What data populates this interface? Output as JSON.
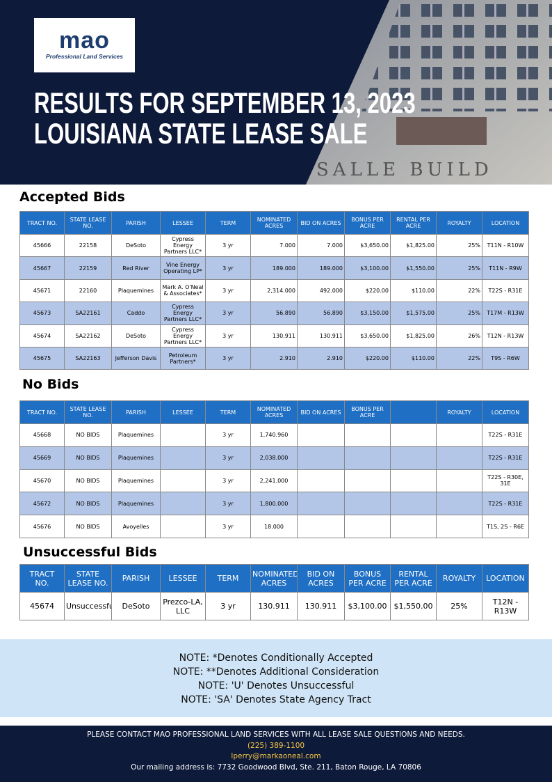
{
  "logo": {
    "name": "mao",
    "tagline": "Professional Land Services"
  },
  "header": {
    "title_line1": "RESULTS FOR SEPTEMBER 13, 2023",
    "title_line2": "LOUISIANA STATE LEASE SALE",
    "building_text": "SALLE BUILD"
  },
  "accepted": {
    "heading": "Accepted Bids",
    "columns": [
      "TRACT NO.",
      "STATE LEASE NO.",
      "PARISH",
      "LESSEE",
      "TERM",
      "NOMINATED ACRES",
      "BID ON ACRES",
      "BONUS PER ACRE",
      "RENTAL PER ACRE",
      "ROYALTY",
      "LOCATION"
    ],
    "rows": [
      [
        "45666",
        "22158",
        "DeSoto",
        "Cypress Energy Partners LLC*",
        "3 yr",
        "7.000",
        "7.000",
        "$3,650.00",
        "$1,825.00",
        "25%",
        "T11N - R10W"
      ],
      [
        "45667",
        "22159",
        "Red River",
        "Vine Energy Operating LP*",
        "3 yr",
        "189.000",
        "189.000",
        "$3,100.00",
        "$1,550.00",
        "25%",
        "T11N - R9W"
      ],
      [
        "45671",
        "22160",
        "Plaquemines",
        "Mark A. O'Neal & Associates*",
        "3 yr",
        "2,314.000",
        "492.000",
        "$220.00",
        "$110.00",
        "22%",
        "T22S - R31E"
      ],
      [
        "45673",
        "SA22161",
        "Caddo",
        "Cypress Energy Partners LLC*",
        "3 yr",
        "56.890",
        "56.890",
        "$3,150.00",
        "$1,575.00",
        "25%",
        "T17M - R13W"
      ],
      [
        "45674",
        "SA22162",
        "DeSoto",
        "Cypress Energy Partners LLC*",
        "3 yr",
        "130.911",
        "130.911",
        "$3,650.00",
        "$1,825.00",
        "26%",
        "T12N - R13W"
      ],
      [
        "45675",
        "SA22163",
        "Jefferson Davis",
        "Petroleum Partners*",
        "3 yr",
        "2.910",
        "2.910",
        "$220.00",
        "$110.00",
        "22%",
        "T9S - R6W"
      ]
    ]
  },
  "no_bids": {
    "heading": "No Bids",
    "columns": [
      "TRACT NO.",
      "STATE LEASE NO.",
      "PARISH",
      "LESSEE",
      "TERM",
      "NOMINATED ACRES",
      "BID ON ACRES",
      "BONUS PER ACRE",
      null,
      "ROYALTY",
      "LOCATION"
    ],
    "rows": [
      [
        "45668",
        "NO BIDS",
        "Plaquemines",
        null,
        "3 yr",
        "1,740.960",
        null,
        null,
        null,
        null,
        "T22S - R31E"
      ],
      [
        "45669",
        "NO BIDS",
        "Plaquemines",
        null,
        "3 yr",
        "2,038.000",
        null,
        null,
        null,
        null,
        "T22S - R31E"
      ],
      [
        "45670",
        "NO BIDS",
        "Plaquemines",
        null,
        "3 yr",
        "2,241.000",
        null,
        null,
        null,
        null,
        "T22S - R30E, 31E"
      ],
      [
        "45672",
        "NO BIDS",
        "Plaquemines",
        null,
        "3 yr",
        "1,800.000",
        null,
        null,
        null,
        null,
        "T22S - R31E"
      ],
      [
        "45676",
        "NO BIDS",
        "Avoyelles",
        null,
        "3 yr",
        "18.000",
        null,
        null,
        null,
        null,
        "T1S, 2S - R6E"
      ]
    ]
  },
  "unsuccessful": {
    "heading": "Unsuccessful Bids",
    "columns": [
      "TRACT NO.",
      "STATE LEASE NO.",
      "PARISH",
      "LESSEE",
      "TERM",
      "NOMINATED ACRES",
      "BID ON ACRES",
      "BONUS PER ACRE",
      "RENTAL PER ACRE",
      "ROYALTY",
      "LOCATION"
    ],
    "rows": [
      [
        "45674",
        "Unsuccessful",
        "DeSoto",
        "Prezco-LA, LLC",
        "3 yr",
        "130.911",
        "130.911",
        "$3,100.00",
        "$1,550.00",
        "25%",
        "T12N - R13W"
      ]
    ]
  },
  "notes": [
    "NOTE: *Denotes Conditionally Accepted",
    "NOTE: **Denotes Additional Consideration",
    "NOTE: 'U' Denotes Unsuccessful",
    "NOTE: 'SA' Denotes State Agency Tract"
  ],
  "footer": {
    "contact": "PLEASE CONTACT MAO PROFESSIONAL LAND SERVICES WITH ALL LEASE SALE QUESTIONS AND NEEDS.",
    "phone": "(225) 389-1100",
    "email": "lperry@markaoneal.com",
    "address": "Our mailing address is:  7732 Goodwood Blvd, Ste. 211, Baton Rouge, LA 70806"
  }
}
